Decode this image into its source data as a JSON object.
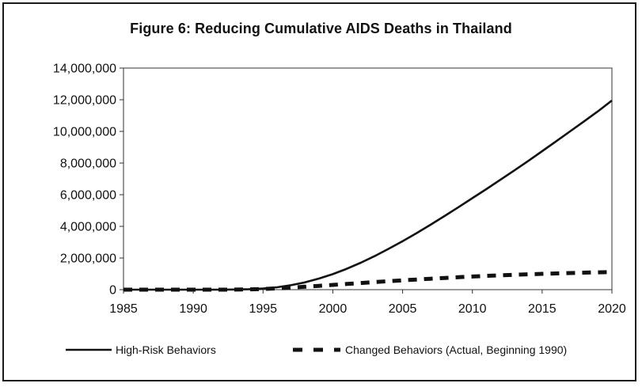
{
  "chart_data": {
    "type": "line",
    "title": "Figure 6: Reducing Cumulative AIDS Deaths in Thailand",
    "xlabel": "",
    "ylabel": "",
    "xlim": [
      1985,
      2020
    ],
    "ylim": [
      0,
      14000000
    ],
    "x_ticks": [
      1985,
      1990,
      1995,
      2000,
      2005,
      2010,
      2015,
      2020
    ],
    "x_tick_labels": [
      "1985",
      "1990",
      "1995",
      "2000",
      "2005",
      "2010",
      "2015",
      "2020"
    ],
    "y_ticks": [
      0,
      2000000,
      4000000,
      6000000,
      8000000,
      10000000,
      12000000,
      14000000
    ],
    "y_tick_labels": [
      "0",
      "2,000,000",
      "4,000,000",
      "6,000,000",
      "8,000,000",
      "10,000,000",
      "12,000,000",
      "14,000,000"
    ],
    "grid": false,
    "legend_position": "bottom",
    "series": [
      {
        "name": "High-Risk Behaviors",
        "style": "solid",
        "color": "#111111",
        "x": [
          1985,
          1986,
          1987,
          1988,
          1989,
          1990,
          1991,
          1992,
          1993,
          1994,
          1995,
          1996,
          1997,
          1998,
          1999,
          2000,
          2001,
          2002,
          2003,
          2004,
          2005,
          2006,
          2007,
          2008,
          2009,
          2010,
          2011,
          2012,
          2013,
          2014,
          2015,
          2016,
          2017,
          2018,
          2019,
          2020
        ],
        "values": [
          0,
          0,
          0,
          0,
          0,
          0,
          0,
          0,
          10000,
          30000,
          70000,
          150000,
          280000,
          460000,
          700000,
          980000,
          1320000,
          1700000,
          2120000,
          2580000,
          3060000,
          3570000,
          4100000,
          4650000,
          5210000,
          5780000,
          6350000,
          6940000,
          7530000,
          8130000,
          8750000,
          9370000,
          10000000,
          10630000,
          11270000,
          11950000
        ]
      },
      {
        "name": "Changed Behaviors (Actual, Beginning 1990)",
        "style": "dashed",
        "color": "#111111",
        "x": [
          1985,
          1986,
          1987,
          1988,
          1989,
          1990,
          1991,
          1992,
          1993,
          1994,
          1995,
          1996,
          1997,
          1998,
          1999,
          2000,
          2001,
          2002,
          2003,
          2004,
          2005,
          2006,
          2007,
          2008,
          2009,
          2010,
          2011,
          2012,
          2013,
          2014,
          2015,
          2016,
          2017,
          2018,
          2019,
          2020
        ],
        "values": [
          0,
          0,
          0,
          0,
          0,
          0,
          0,
          0,
          5000,
          15000,
          40000,
          80000,
          130000,
          185000,
          240000,
          300000,
          360000,
          420000,
          480000,
          535000,
          590000,
          640000,
          690000,
          740000,
          785000,
          830000,
          870000,
          905000,
          940000,
          970000,
          1000000,
          1025000,
          1050000,
          1075000,
          1095000,
          1110000
        ]
      }
    ]
  }
}
